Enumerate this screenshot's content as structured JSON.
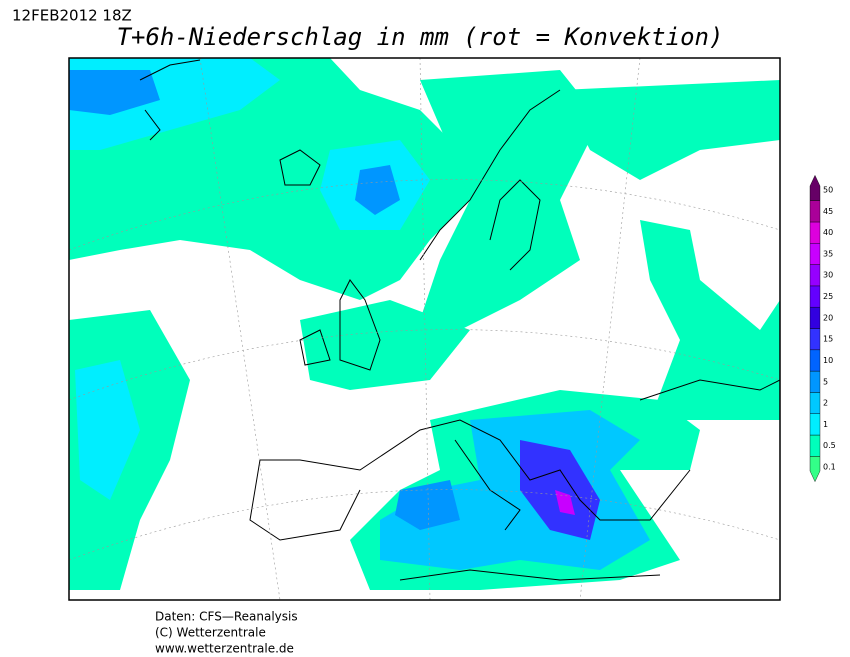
{
  "header": {
    "date": "12FEB2012 18Z",
    "title": "T+6h-Niederschlag in mm (rot = Konvektion)"
  },
  "legend": {
    "items": [
      {
        "label": "0.1",
        "color": "#33ff88"
      },
      {
        "label": "0.5",
        "color": "#00ffbb"
      },
      {
        "label": "1",
        "color": "#00eeff"
      },
      {
        "label": "2",
        "color": "#00c8ff"
      },
      {
        "label": "5",
        "color": "#0096ff"
      },
      {
        "label": "10",
        "color": "#0064ff"
      },
      {
        "label": "15",
        "color": "#3232ff"
      },
      {
        "label": "20",
        "color": "#3200e0"
      },
      {
        "label": "25",
        "color": "#6400ff"
      },
      {
        "label": "30",
        "color": "#9600ff"
      },
      {
        "label": "35",
        "color": "#c800ff"
      },
      {
        "label": "40",
        "color": "#dd00dd"
      },
      {
        "label": "45",
        "color": "#aa0099"
      },
      {
        "label": "50",
        "color": "#660066"
      }
    ]
  },
  "footer": {
    "lines": [
      "Daten: CFS—Reanalysis",
      "(C) Wetterzentrale",
      "www.wetterzentrale.de"
    ]
  }
}
